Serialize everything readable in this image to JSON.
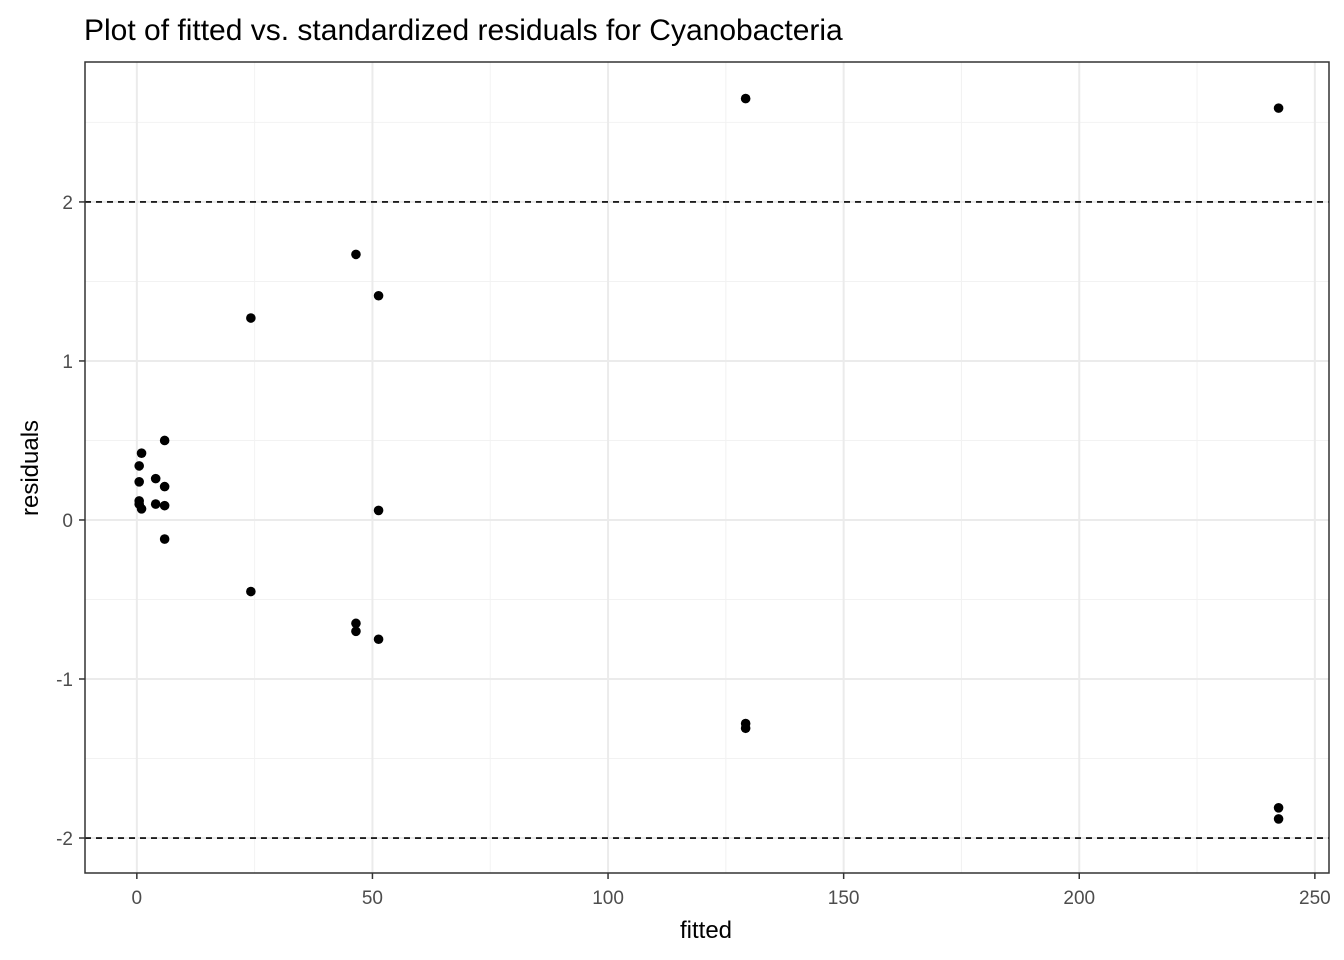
{
  "chart_data": {
    "type": "scatter",
    "title": "Plot of fitted vs. standardized residuals for Cyanobacteria",
    "xlabel": "fitted",
    "ylabel": "residuals",
    "xlim": [
      -11,
      253
    ],
    "ylim": [
      -2.22,
      2.88
    ],
    "x_ticks": [
      0,
      50,
      100,
      150,
      200,
      250
    ],
    "x_tick_labels": [
      "0",
      "50",
      "100",
      "150",
      "200",
      "250"
    ],
    "y_ticks": [
      -2,
      -1,
      0,
      1,
      2
    ],
    "y_tick_labels": [
      "-2",
      "-1",
      "0",
      "1",
      "2"
    ],
    "grid": true,
    "reference_lines_y": [
      -2,
      2
    ],
    "point_color": "#000000",
    "points": [
      {
        "x": 0.5,
        "y": 0.34
      },
      {
        "x": 0.5,
        "y": 0.24
      },
      {
        "x": 0.5,
        "y": 0.12
      },
      {
        "x": 0.5,
        "y": 0.1
      },
      {
        "x": 1.0,
        "y": 0.42
      },
      {
        "x": 1.0,
        "y": 0.07
      },
      {
        "x": 4.0,
        "y": 0.26
      },
      {
        "x": 4.0,
        "y": 0.1
      },
      {
        "x": 5.9,
        "y": 0.5
      },
      {
        "x": 5.9,
        "y": 0.21
      },
      {
        "x": 5.9,
        "y": 0.09
      },
      {
        "x": 5.9,
        "y": -0.12
      },
      {
        "x": 24.2,
        "y": 1.27
      },
      {
        "x": 24.2,
        "y": -0.45
      },
      {
        "x": 46.5,
        "y": 1.67
      },
      {
        "x": 46.5,
        "y": -0.65
      },
      {
        "x": 46.5,
        "y": -0.7
      },
      {
        "x": 51.3,
        "y": 1.41
      },
      {
        "x": 51.3,
        "y": 0.06
      },
      {
        "x": 51.3,
        "y": -0.75
      },
      {
        "x": 129.2,
        "y": 2.65
      },
      {
        "x": 129.2,
        "y": -1.28
      },
      {
        "x": 129.2,
        "y": -1.31
      },
      {
        "x": 242.3,
        "y": 2.59
      },
      {
        "x": 242.3,
        "y": -1.81
      },
      {
        "x": 242.3,
        "y": -1.88
      }
    ]
  }
}
